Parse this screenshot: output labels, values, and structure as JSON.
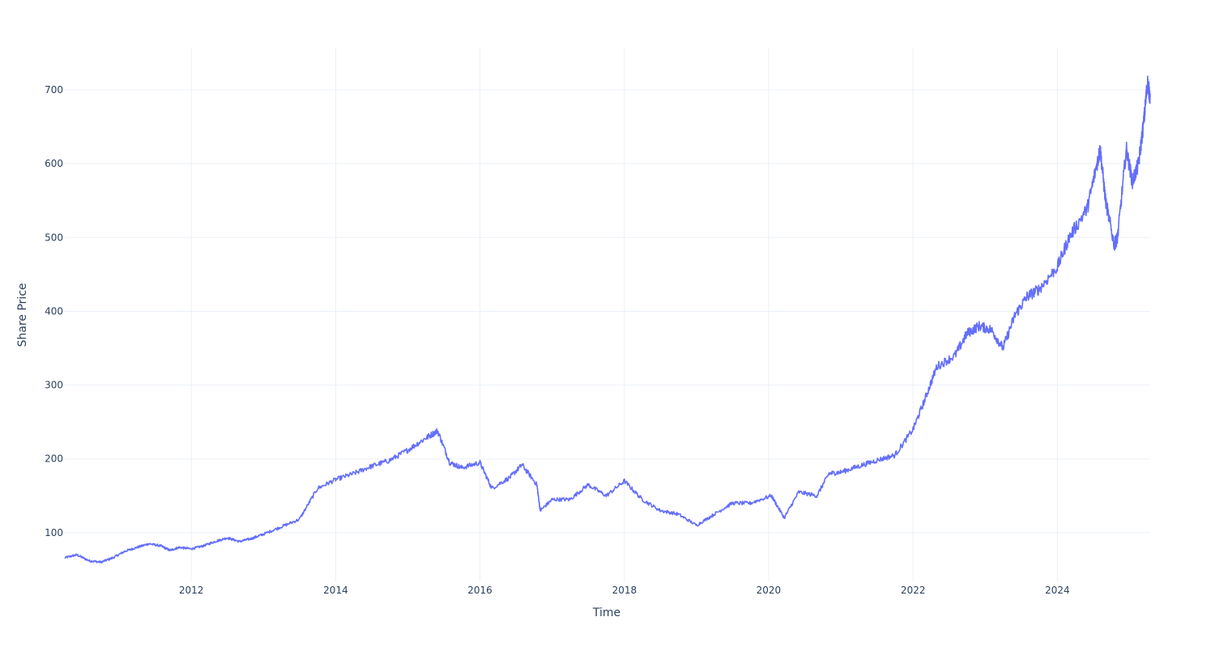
{
  "chart_data": {
    "type": "line",
    "title": "",
    "xlabel": "Time",
    "ylabel": "Share Price",
    "x_ticks": [
      "2012",
      "2014",
      "2016",
      "2018",
      "2020",
      "2022",
      "2024"
    ],
    "y_ticks": [
      100,
      200,
      300,
      400,
      500,
      600,
      700
    ],
    "xlim": [
      "2010-04-01",
      "2025-04-15"
    ],
    "ylim": [
      34,
      756
    ],
    "grid": true,
    "legend": "none",
    "line_color": "#636efa",
    "series": [
      {
        "x": [
          "2010-04-01",
          "2010-06-01",
          "2010-08-01",
          "2010-10-01",
          "2010-12-01",
          "2011-02-01",
          "2011-04-01",
          "2011-06-01",
          "2011-08-01",
          "2011-09-15",
          "2011-11-01",
          "2012-01-01",
          "2012-03-01",
          "2012-05-01",
          "2012-07-01",
          "2012-09-01",
          "2012-11-01",
          "2013-01-01",
          "2013-04-01",
          "2013-07-01",
          "2013-10-01",
          "2014-01-01",
          "2014-04-01",
          "2014-07-01",
          "2014-10-01",
          "2015-01-01",
          "2015-04-01",
          "2015-06-01",
          "2015-08-01",
          "2015-10-01",
          "2016-01-01",
          "2016-03-01",
          "2016-06-01",
          "2016-08-01",
          "2016-10-15",
          "2016-11-01",
          "2017-01-01",
          "2017-04-01",
          "2017-07-01",
          "2017-10-01",
          "2018-01-01",
          "2018-04-01",
          "2018-07-01",
          "2018-10-01",
          "2019-01-01",
          "2019-04-01",
          "2019-07-01",
          "2019-10-01",
          "2020-01-15",
          "2020-03-20",
          "2020-06-01",
          "2020-09-01",
          "2020-11-01",
          "2021-01-01",
          "2021-04-01",
          "2021-07-01",
          "2021-10-01",
          "2022-01-01",
          "2022-03-01",
          "2022-05-01",
          "2022-08-01",
          "2022-10-01",
          "2022-12-01",
          "2023-02-01",
          "2023-04-01",
          "2023-06-01",
          "2023-08-01",
          "2023-10-01",
          "2024-01-01",
          "2024-03-01",
          "2024-06-01",
          "2024-07-20",
          "2024-08-05",
          "2024-09-01",
          "2024-10-15",
          "2024-11-01",
          "2024-12-15",
          "2025-01-15",
          "2025-02-15",
          "2025-03-15",
          "2025-04-01",
          "2025-04-15"
        ],
        "y": [
          66,
          70,
          62,
          60,
          66,
          75,
          80,
          85,
          82,
          76,
          80,
          78,
          82,
          88,
          93,
          88,
          92,
          98,
          108,
          118,
          160,
          172,
          180,
          190,
          198,
          212,
          228,
          238,
          195,
          188,
          195,
          160,
          175,
          192,
          165,
          130,
          145,
          145,
          165,
          150,
          170,
          145,
          130,
          125,
          110,
          125,
          140,
          140,
          150,
          120,
          155,
          150,
          180,
          182,
          190,
          198,
          205,
          240,
          280,
          325,
          340,
          370,
          380,
          375,
          350,
          395,
          420,
          430,
          460,
          500,
          540,
          600,
          620,
          550,
          490,
          500,
          620,
          575,
          600,
          660,
          710,
          690
        ]
      }
    ]
  }
}
